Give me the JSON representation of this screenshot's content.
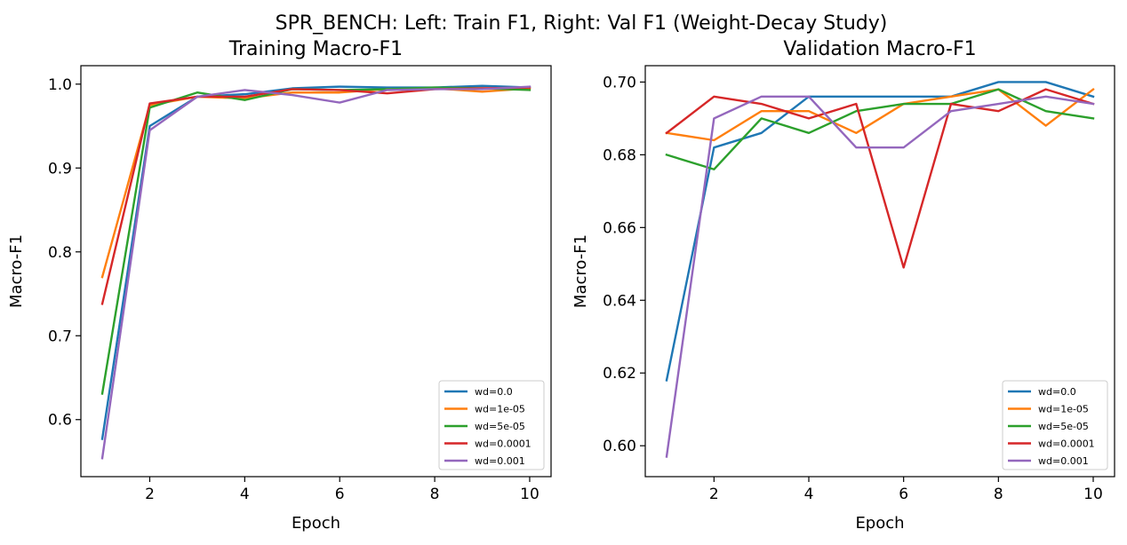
{
  "figure": {
    "suptitle": "SPR_BENCH: Left: Train F1, Right: Val F1 (Weight-Decay Study)"
  },
  "colors": {
    "wd=0.0": "#1f77b4",
    "wd=1e-05": "#ff7f0e",
    "wd=5e-05": "#2ca02c",
    "wd=0.0001": "#d62728",
    "wd=0.001": "#9467bd"
  },
  "chart_data": [
    {
      "type": "line",
      "title": "Training Macro-F1",
      "xlabel": "Epoch",
      "ylabel": "Macro-F1",
      "xlim": [
        0.55,
        10.45
      ],
      "ylim": [
        0.532,
        1.022
      ],
      "xticks": [
        2,
        4,
        6,
        8,
        10
      ],
      "yticks": [
        0.6,
        0.7,
        0.8,
        0.9,
        1.0
      ],
      "ytick_labels": [
        "0.6",
        "0.7",
        "0.8",
        "0.9",
        "1.0"
      ],
      "grid": false,
      "legend": "lower right",
      "x": [
        1,
        2,
        3,
        4,
        5,
        6,
        7,
        8,
        9,
        10
      ],
      "series": [
        {
          "name": "wd=0.0",
          "values": [
            0.577,
            0.95,
            0.985,
            0.988,
            0.995,
            0.997,
            0.996,
            0.996,
            0.998,
            0.996
          ]
        },
        {
          "name": "wd=1e-05",
          "values": [
            0.77,
            0.975,
            0.985,
            0.983,
            0.99,
            0.99,
            0.994,
            0.995,
            0.991,
            0.995
          ]
        },
        {
          "name": "wd=5e-05",
          "values": [
            0.631,
            0.972,
            0.99,
            0.981,
            0.994,
            0.993,
            0.994,
            0.996,
            0.995,
            0.993
          ]
        },
        {
          "name": "wd=0.0001",
          "values": [
            0.738,
            0.977,
            0.985,
            0.985,
            0.994,
            0.993,
            0.989,
            0.994,
            0.995,
            0.996
          ]
        },
        {
          "name": "wd=0.001",
          "values": [
            0.554,
            0.945,
            0.985,
            0.993,
            0.987,
            0.978,
            0.993,
            0.994,
            0.994,
            0.997
          ]
        }
      ]
    },
    {
      "type": "line",
      "title": "Validation Macro-F1",
      "xlabel": "Epoch",
      "ylabel": "Macro-F1",
      "xlim": [
        0.55,
        10.45
      ],
      "ylim": [
        0.5915,
        0.7045
      ],
      "xticks": [
        2,
        4,
        6,
        8,
        10
      ],
      "yticks": [
        0.6,
        0.62,
        0.64,
        0.66,
        0.68,
        0.7
      ],
      "ytick_labels": [
        "0.60",
        "0.62",
        "0.64",
        "0.66",
        "0.68",
        "0.70"
      ],
      "grid": false,
      "legend": "lower right",
      "x": [
        1,
        2,
        3,
        4,
        5,
        6,
        7,
        8,
        9,
        10
      ],
      "series": [
        {
          "name": "wd=0.0",
          "values": [
            0.618,
            0.682,
            0.686,
            0.696,
            0.696,
            0.696,
            0.696,
            0.7,
            0.7,
            0.696
          ]
        },
        {
          "name": "wd=1e-05",
          "values": [
            0.686,
            0.684,
            0.692,
            0.692,
            0.686,
            0.694,
            0.696,
            0.698,
            0.688,
            0.698
          ]
        },
        {
          "name": "wd=5e-05",
          "values": [
            0.68,
            0.676,
            0.69,
            0.686,
            0.692,
            0.694,
            0.694,
            0.698,
            0.692,
            0.69
          ]
        },
        {
          "name": "wd=0.0001",
          "values": [
            0.686,
            0.696,
            0.694,
            0.69,
            0.694,
            0.649,
            0.694,
            0.692,
            0.698,
            0.694
          ]
        },
        {
          "name": "wd=0.001",
          "values": [
            0.597,
            0.69,
            0.696,
            0.696,
            0.682,
            0.682,
            0.692,
            0.694,
            0.696,
            0.694
          ]
        }
      ]
    }
  ]
}
